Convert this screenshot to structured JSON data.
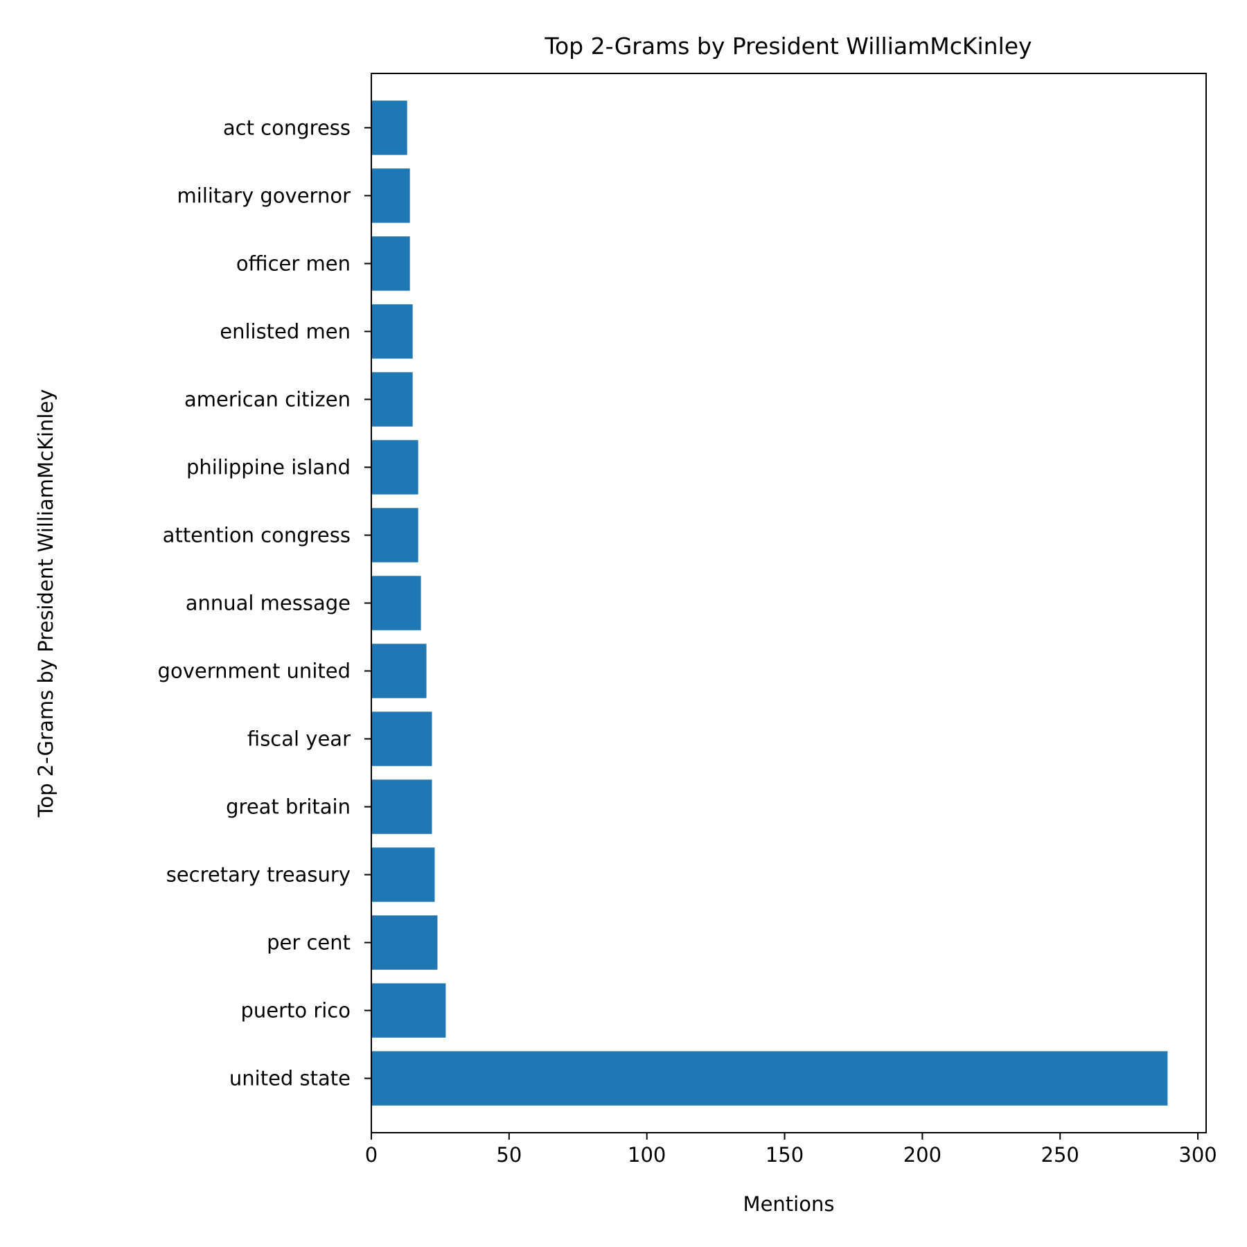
{
  "chart_data": {
    "type": "bar",
    "orientation": "horizontal",
    "title": "Top 2-Grams by President WilliamMcKinley",
    "xlabel": "Mentions",
    "ylabel": "Top 2-Grams by President WilliamMcKinley",
    "categories": [
      "united state",
      "puerto rico",
      "per cent",
      "secretary treasury",
      "great britain",
      "fiscal year",
      "government united",
      "annual message",
      "attention congress",
      "philippine island",
      "american citizen",
      "enlisted men",
      "officer men",
      "military governor",
      "act congress"
    ],
    "values": [
      289,
      27,
      24,
      23,
      22,
      22,
      20,
      18,
      17,
      17,
      15,
      15,
      14,
      14,
      13
    ],
    "xlim": [
      0,
      303
    ],
    "xticks": [
      0,
      50,
      100,
      150,
      200,
      250,
      300
    ],
    "grid": false,
    "bar_color": "#1f77b4"
  }
}
